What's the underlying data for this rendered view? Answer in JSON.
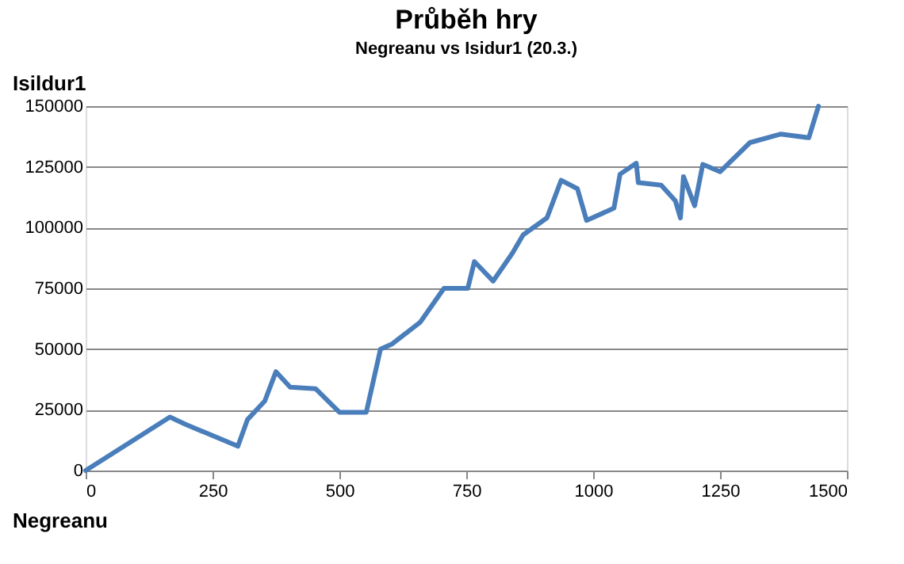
{
  "chart_data": {
    "type": "line",
    "title": "Průběh hry",
    "subtitle": "Negreanu vs Isidur1 (20.3.)",
    "xlabel": "Negreanu",
    "ylabel": "Isildur1",
    "x": [
      0,
      166,
      197,
      300,
      319,
      353,
      375,
      403,
      453,
      500,
      553,
      581,
      603,
      659,
      706,
      753,
      766,
      803,
      841,
      862,
      909,
      937,
      969,
      987,
      1041,
      1053,
      1085,
      1089,
      1134,
      1162,
      1172,
      1178,
      1200,
      1216,
      1250,
      1309,
      1369,
      1425,
      1444
    ],
    "series": [
      {
        "color": "#4a7ebb",
        "values": [
          0,
          22000,
          19000,
          10000,
          21000,
          28600,
          40700,
          34300,
          33700,
          24000,
          24000,
          50000,
          52000,
          61000,
          75000,
          75000,
          86000,
          78000,
          89500,
          97000,
          104000,
          119500,
          116000,
          103000,
          108000,
          122000,
          126500,
          118500,
          117500,
          111000,
          104000,
          121000,
          109000,
          126000,
          123000,
          135000,
          138500,
          137000,
          150000
        ]
      }
    ],
    "xlim": [
      0,
      1500
    ],
    "xticks": [
      0,
      250,
      500,
      750,
      1000,
      1250,
      1500
    ],
    "ylim": [
      0,
      150000
    ],
    "yticks": [
      0,
      25000,
      50000,
      75000,
      100000,
      125000,
      150000
    ],
    "grid": "y",
    "marker": "none",
    "line_style": "solid"
  }
}
